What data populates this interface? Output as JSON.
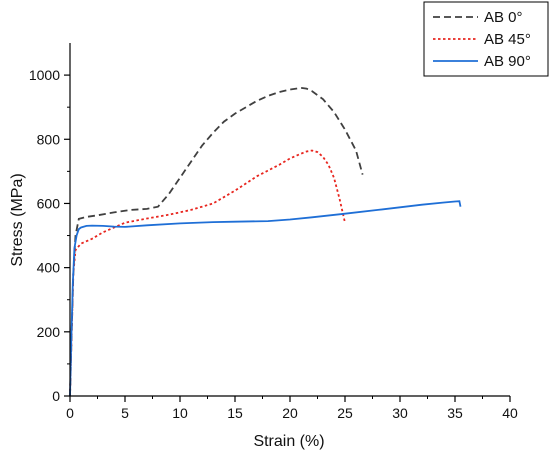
{
  "chart_data": {
    "type": "line",
    "xlabel": "Strain (%)",
    "ylabel": "Stress (MPa)",
    "xlim": [
      0,
      40
    ],
    "ylim": [
      0,
      1100
    ],
    "xticks": [
      0,
      5,
      10,
      15,
      20,
      25,
      30,
      35,
      40
    ],
    "yticks": [
      0,
      200,
      400,
      600,
      800,
      1000
    ],
    "grid": false,
    "legend": "top-right",
    "series": [
      {
        "name": "AB 0°",
        "color": "#404040",
        "dash": "dashed",
        "x": [
          0,
          0.15,
          0.3,
          0.5,
          0.8,
          1.5,
          2.5,
          4,
          5.5,
          7,
          8,
          9,
          10,
          11,
          12,
          13,
          14,
          15,
          16,
          17,
          18,
          19,
          20,
          21,
          21.5,
          22,
          23,
          24,
          25,
          26,
          26.6
        ],
        "y": [
          0,
          200,
          380,
          500,
          552,
          558,
          563,
          572,
          580,
          583,
          590,
          630,
          680,
          730,
          780,
          820,
          855,
          880,
          900,
          920,
          935,
          947,
          955,
          960,
          958,
          950,
          925,
          885,
          830,
          765,
          690
        ]
      },
      {
        "name": "AB 45°",
        "color": "#e8251e",
        "dash": "dotted",
        "x": [
          0,
          0.15,
          0.3,
          0.5,
          1,
          2,
          3,
          5,
          7,
          9,
          11,
          13,
          15,
          17,
          19,
          20,
          21,
          21.5,
          22,
          22.5,
          23,
          23.5,
          24,
          24.5,
          25
        ],
        "y": [
          0,
          200,
          380,
          455,
          475,
          490,
          510,
          540,
          553,
          565,
          580,
          600,
          640,
          685,
          720,
          740,
          755,
          762,
          765,
          760,
          745,
          720,
          680,
          615,
          540
        ]
      },
      {
        "name": "AB 90°",
        "color": "#1f6fd6",
        "dash": "solid",
        "x": [
          0,
          0.1,
          0.25,
          0.4,
          0.6,
          0.8,
          1,
          1.5,
          2,
          3,
          4,
          5,
          7,
          10,
          13,
          15,
          18,
          20,
          22,
          25,
          28,
          30,
          32,
          34,
          35,
          35.4,
          35.5
        ],
        "y": [
          0,
          150,
          350,
          460,
          500,
          520,
          525,
          530,
          531,
          530,
          528,
          527,
          532,
          538,
          542,
          543,
          545,
          550,
          557,
          568,
          580,
          588,
          596,
          603,
          606,
          607,
          590
        ]
      }
    ]
  }
}
